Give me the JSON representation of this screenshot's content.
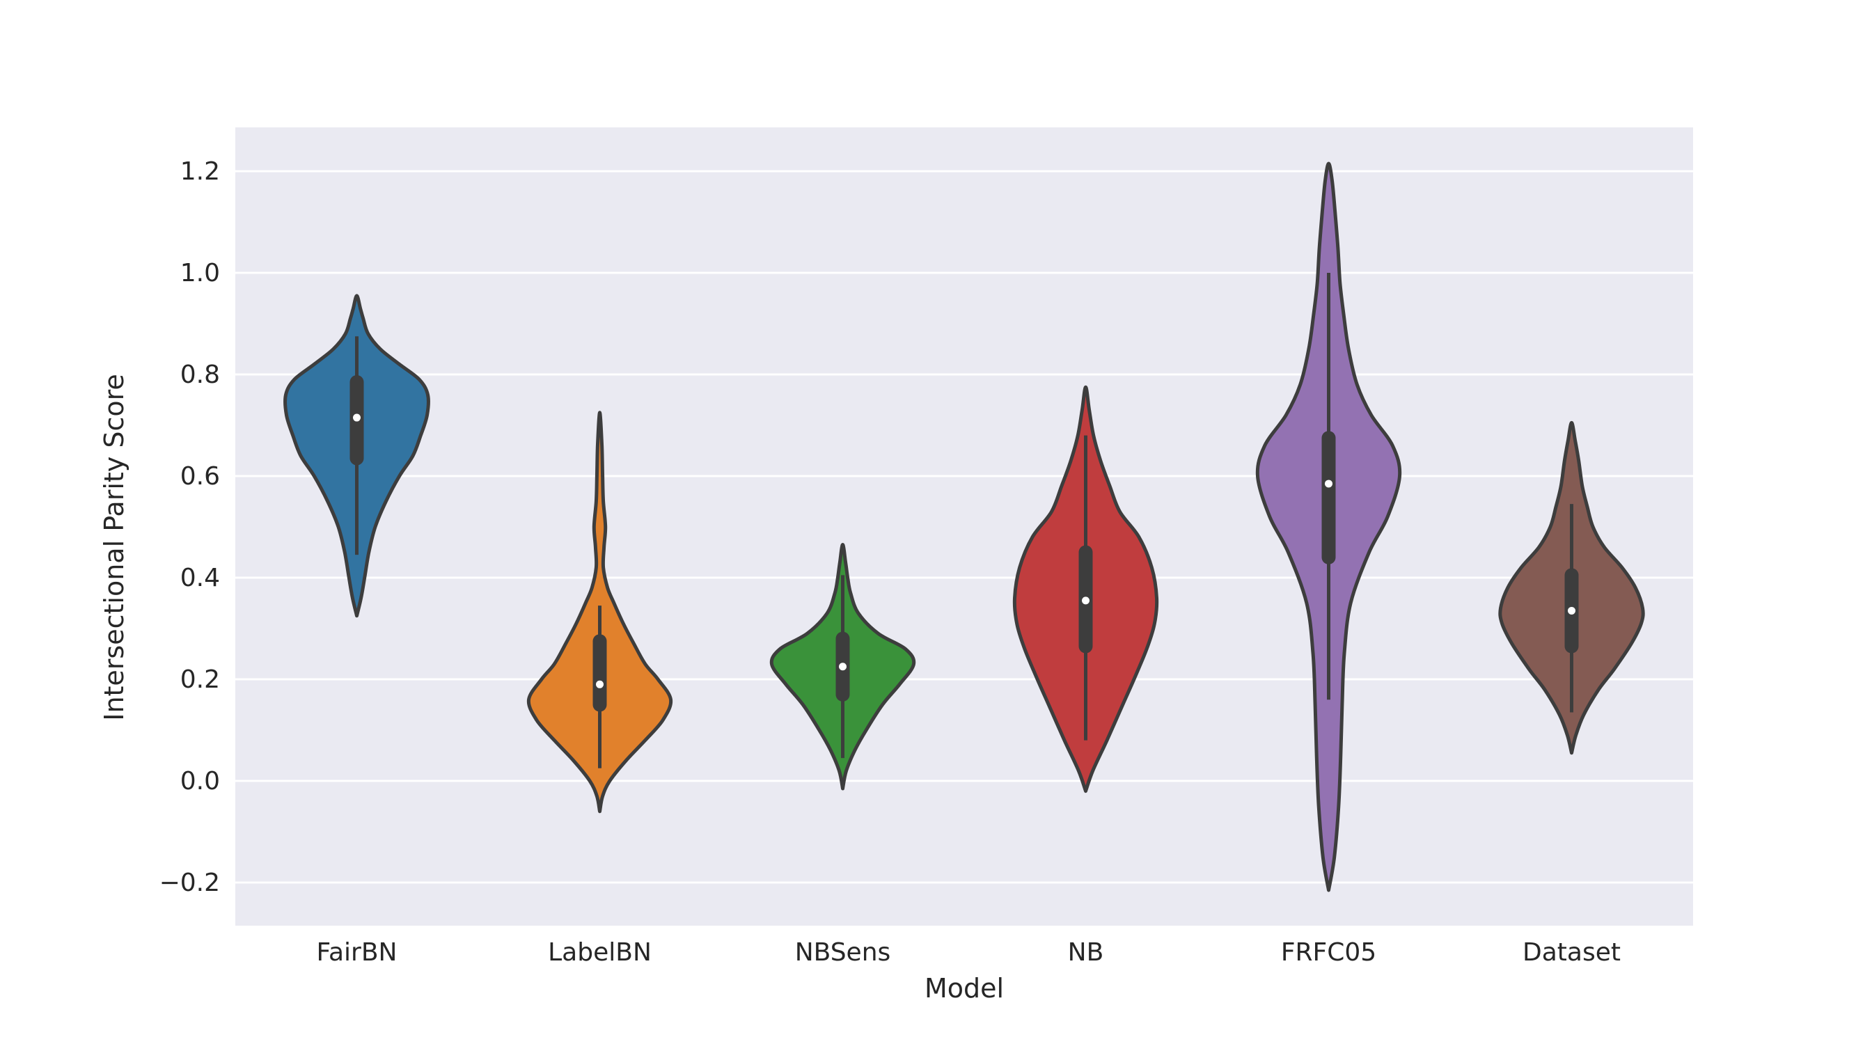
{
  "chart_data": {
    "type": "violin",
    "title": "",
    "xlabel": "Model",
    "ylabel": "Intersectional Parity Score",
    "ylim": [
      -0.28,
      1.29
    ],
    "yticks": [
      -0.2,
      0.0,
      0.2,
      0.4,
      0.6,
      0.8,
      1.0,
      1.2
    ],
    "ytick_labels": [
      "−0.2",
      "0.0",
      "0.2",
      "0.4",
      "0.6",
      "0.8",
      "1.0",
      "1.2"
    ],
    "grid": true,
    "background_color": "#eaeaf2",
    "edge_color": "#3d3d3d",
    "categories": [
      "FairBN",
      "LabelBN",
      "NBSens",
      "NB",
      "FRFC05",
      "Dataset"
    ],
    "series": [
      {
        "category": "FairBN",
        "color": "#3274a1",
        "min": 0.445,
        "q1": 0.635,
        "median": 0.715,
        "q3": 0.785,
        "max": 0.875,
        "range": [
          0.325,
          0.955
        ],
        "density": [
          [
            0.325,
            0.0
          ],
          [
            0.36,
            0.06
          ],
          [
            0.4,
            0.11
          ],
          [
            0.45,
            0.17
          ],
          [
            0.5,
            0.26
          ],
          [
            0.55,
            0.41
          ],
          [
            0.6,
            0.6
          ],
          [
            0.64,
            0.79
          ],
          [
            0.68,
            0.9
          ],
          [
            0.72,
            0.99
          ],
          [
            0.76,
            1.0
          ],
          [
            0.79,
            0.88
          ],
          [
            0.82,
            0.6
          ],
          [
            0.85,
            0.33
          ],
          [
            0.88,
            0.16
          ],
          [
            0.91,
            0.09
          ],
          [
            0.93,
            0.05
          ],
          [
            0.955,
            0.0
          ]
        ]
      },
      {
        "category": "LabelBN",
        "color": "#e1812c",
        "min": 0.025,
        "q1": 0.15,
        "median": 0.19,
        "q3": 0.275,
        "max": 0.345,
        "range": [
          -0.06,
          0.725
        ],
        "density": [
          [
            -0.06,
            0.0
          ],
          [
            -0.03,
            0.04
          ],
          [
            0.0,
            0.14
          ],
          [
            0.04,
            0.37
          ],
          [
            0.08,
            0.64
          ],
          [
            0.12,
            0.89
          ],
          [
            0.16,
            1.0
          ],
          [
            0.2,
            0.82
          ],
          [
            0.23,
            0.64
          ],
          [
            0.27,
            0.48
          ],
          [
            0.31,
            0.33
          ],
          [
            0.35,
            0.2
          ],
          [
            0.38,
            0.11
          ],
          [
            0.42,
            0.05
          ],
          [
            0.46,
            0.06
          ],
          [
            0.5,
            0.08
          ],
          [
            0.55,
            0.05
          ],
          [
            0.6,
            0.04
          ],
          [
            0.66,
            0.03
          ],
          [
            0.725,
            0.0
          ]
        ]
      },
      {
        "category": "NBSens",
        "color": "#3a923a",
        "min": 0.045,
        "q1": 0.17,
        "median": 0.225,
        "q3": 0.28,
        "max": 0.405,
        "range": [
          -0.015,
          0.465
        ],
        "density": [
          [
            -0.015,
            0.0
          ],
          [
            0.02,
            0.05
          ],
          [
            0.06,
            0.17
          ],
          [
            0.1,
            0.33
          ],
          [
            0.15,
            0.56
          ],
          [
            0.19,
            0.8
          ],
          [
            0.23,
            1.0
          ],
          [
            0.26,
            0.88
          ],
          [
            0.29,
            0.5
          ],
          [
            0.33,
            0.22
          ],
          [
            0.37,
            0.11
          ],
          [
            0.4,
            0.07
          ],
          [
            0.43,
            0.04
          ],
          [
            0.465,
            0.0
          ]
        ]
      },
      {
        "category": "NB",
        "color": "#c03d3e",
        "min": 0.08,
        "q1": 0.265,
        "median": 0.355,
        "q3": 0.45,
        "max": 0.68,
        "range": [
          -0.02,
          0.775
        ],
        "density": [
          [
            -0.02,
            0.0
          ],
          [
            0.02,
            0.1
          ],
          [
            0.08,
            0.3
          ],
          [
            0.14,
            0.49
          ],
          [
            0.2,
            0.68
          ],
          [
            0.26,
            0.86
          ],
          [
            0.31,
            0.97
          ],
          [
            0.36,
            1.0
          ],
          [
            0.42,
            0.93
          ],
          [
            0.48,
            0.75
          ],
          [
            0.53,
            0.48
          ],
          [
            0.58,
            0.34
          ],
          [
            0.63,
            0.21
          ],
          [
            0.68,
            0.11
          ],
          [
            0.73,
            0.05
          ],
          [
            0.775,
            0.0
          ]
        ]
      },
      {
        "category": "FRFC05",
        "color": "#9372b2",
        "min": 0.16,
        "q1": 0.44,
        "median": 0.585,
        "q3": 0.675,
        "max": 1.0,
        "range": [
          -0.215,
          1.215
        ],
        "density": [
          [
            -0.215,
            0.0
          ],
          [
            -0.15,
            0.08
          ],
          [
            -0.05,
            0.14
          ],
          [
            0.05,
            0.17
          ],
          [
            0.15,
            0.19
          ],
          [
            0.25,
            0.22
          ],
          [
            0.35,
            0.31
          ],
          [
            0.45,
            0.57
          ],
          [
            0.52,
            0.83
          ],
          [
            0.6,
            1.0
          ],
          [
            0.66,
            0.9
          ],
          [
            0.72,
            0.6
          ],
          [
            0.78,
            0.4
          ],
          [
            0.85,
            0.28
          ],
          [
            0.92,
            0.21
          ],
          [
            0.98,
            0.16
          ],
          [
            1.05,
            0.13
          ],
          [
            1.12,
            0.09
          ],
          [
            1.18,
            0.05
          ],
          [
            1.215,
            0.0
          ]
        ]
      },
      {
        "category": "Dataset",
        "color": "#845b53",
        "min": 0.135,
        "q1": 0.265,
        "median": 0.335,
        "q3": 0.405,
        "max": 0.545,
        "range": [
          0.055,
          0.705
        ],
        "density": [
          [
            0.055,
            0.0
          ],
          [
            0.09,
            0.06
          ],
          [
            0.13,
            0.17
          ],
          [
            0.18,
            0.38
          ],
          [
            0.22,
            0.6
          ],
          [
            0.27,
            0.84
          ],
          [
            0.31,
            0.98
          ],
          [
            0.34,
            1.0
          ],
          [
            0.38,
            0.9
          ],
          [
            0.42,
            0.71
          ],
          [
            0.46,
            0.46
          ],
          [
            0.5,
            0.3
          ],
          [
            0.54,
            0.22
          ],
          [
            0.58,
            0.15
          ],
          [
            0.63,
            0.1
          ],
          [
            0.67,
            0.05
          ],
          [
            0.705,
            0.0
          ]
        ]
      }
    ]
  }
}
